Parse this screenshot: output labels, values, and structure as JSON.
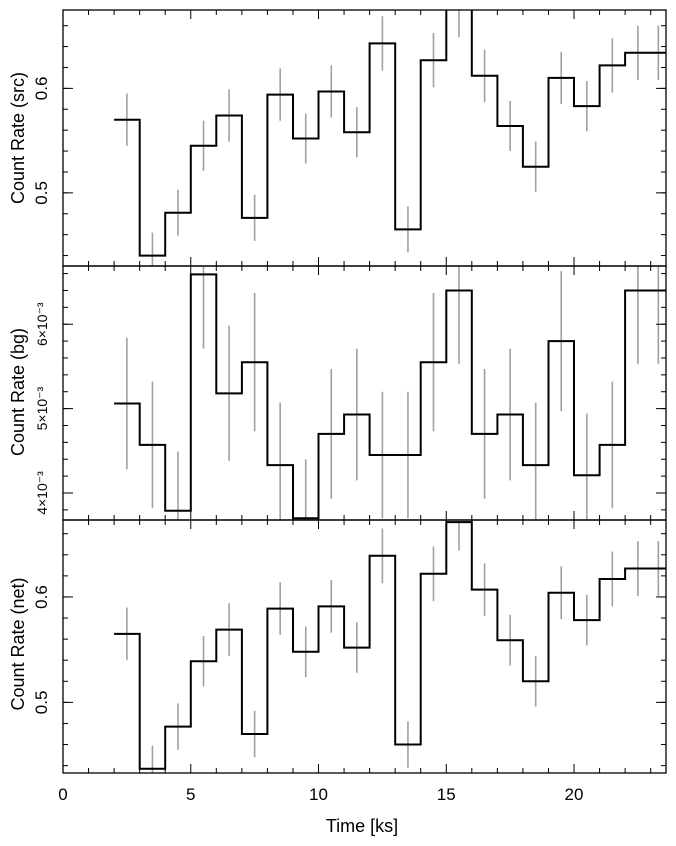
{
  "chart_data": [
    {
      "type": "line",
      "ylabel": "Count Rate (src)",
      "ylim": [
        0.43,
        0.675
      ],
      "yticks": [
        0.5,
        0.6
      ],
      "ytick_labels": [
        "0.5",
        "0.6"
      ],
      "x_edges": [
        2.0,
        3.0,
        4.0,
        5.0,
        6.0,
        7.0,
        8.0,
        9.0,
        10.0,
        11.0,
        12.0,
        13.0,
        14.0,
        15.0,
        16.0,
        17.0,
        18.0,
        19.0,
        20.0,
        21.0,
        22.0,
        23.0,
        23.6
      ],
      "x": [
        2.5,
        3.5,
        4.5,
        5.5,
        6.5,
        7.5,
        8.5,
        9.5,
        10.5,
        11.5,
        12.5,
        13.5,
        14.5,
        15.5,
        16.5,
        17.5,
        18.5,
        19.5,
        20.5,
        21.5,
        22.5,
        23.3
      ],
      "values": [
        0.57,
        0.44,
        0.481,
        0.545,
        0.574,
        0.476,
        0.594,
        0.552,
        0.597,
        0.558,
        0.643,
        0.465,
        0.627,
        0.676,
        0.612,
        0.564,
        0.525,
        0.61,
        0.583,
        0.622,
        0.634,
        0.634
      ],
      "errors": [
        0.025,
        0.022,
        0.022,
        0.024,
        0.025,
        0.022,
        0.025,
        0.024,
        0.025,
        0.024,
        0.026,
        0.022,
        0.026,
        0.027,
        0.025,
        0.024,
        0.024,
        0.025,
        0.024,
        0.026,
        0.026,
        0.026
      ]
    },
    {
      "type": "line",
      "ylabel": "Count Rate (bg)",
      "ylim": [
        0.00368,
        0.00669
      ],
      "yticks": [
        0.004,
        0.005,
        0.006
      ],
      "ytick_labels": [
        "4×10⁻³",
        "5×10⁻³",
        "6×10⁻³"
      ],
      "x_edges": [
        2.0,
        3.0,
        4.0,
        5.0,
        6.0,
        7.0,
        8.0,
        9.0,
        10.0,
        11.0,
        12.0,
        13.0,
        14.0,
        15.0,
        16.0,
        17.0,
        18.0,
        19.0,
        20.0,
        21.0,
        22.0,
        23.0,
        23.6
      ],
      "x": [
        2.5,
        3.5,
        4.5,
        5.5,
        6.5,
        7.5,
        8.5,
        9.5,
        10.5,
        11.5,
        12.5,
        13.5,
        14.5,
        15.5,
        16.5,
        17.5,
        18.5,
        19.5,
        20.5,
        21.5,
        22.5,
        23.3
      ],
      "values": [
        0.00506,
        0.00457,
        0.00379,
        0.00659,
        0.00518,
        0.00555,
        0.00433,
        0.0037,
        0.0047,
        0.00493,
        0.00445,
        0.00445,
        0.00555,
        0.0064,
        0.0047,
        0.00493,
        0.00433,
        0.0058,
        0.00421,
        0.00457,
        0.0064,
        0.0064
      ],
      "errors": [
        0.00078,
        0.00075,
        0.0007,
        0.00088,
        0.0008,
        0.00082,
        0.00074,
        0.0007,
        0.00077,
        0.00078,
        0.00075,
        0.00075,
        0.00082,
        0.00087,
        0.00077,
        0.00078,
        0.00074,
        0.00083,
        0.00073,
        0.00075,
        0.00087,
        0.00087
      ]
    },
    {
      "type": "line",
      "ylabel": "Count Rate (net)",
      "xlabel": "Time [ks]",
      "xlim": [
        0,
        23.6
      ],
      "xticks": [
        0,
        5,
        10,
        15,
        20
      ],
      "xtick_labels": [
        "0",
        "5",
        "10",
        "15",
        "20"
      ],
      "ylim": [
        0.433,
        0.673
      ],
      "yticks": [
        0.5,
        0.6
      ],
      "ytick_labels": [
        "0.5",
        "0.6"
      ],
      "x_edges": [
        2.0,
        3.0,
        4.0,
        5.0,
        6.0,
        7.0,
        8.0,
        9.0,
        10.0,
        11.0,
        12.0,
        13.0,
        14.0,
        15.0,
        16.0,
        17.0,
        18.0,
        19.0,
        20.0,
        21.0,
        22.0,
        23.0,
        23.6
      ],
      "x": [
        2.5,
        3.5,
        4.5,
        5.5,
        6.5,
        7.5,
        8.5,
        9.5,
        10.5,
        11.5,
        12.5,
        13.5,
        14.5,
        15.5,
        16.5,
        17.5,
        18.5,
        19.5,
        20.5,
        21.5,
        22.5,
        23.3
      ],
      "values": [
        0.565,
        0.437,
        0.477,
        0.539,
        0.569,
        0.47,
        0.589,
        0.548,
        0.591,
        0.552,
        0.639,
        0.46,
        0.622,
        0.671,
        0.607,
        0.559,
        0.52,
        0.604,
        0.578,
        0.617,
        0.627,
        0.627
      ],
      "errors": [
        0.025,
        0.022,
        0.022,
        0.024,
        0.025,
        0.022,
        0.025,
        0.024,
        0.025,
        0.024,
        0.026,
        0.022,
        0.026,
        0.027,
        0.025,
        0.024,
        0.024,
        0.025,
        0.024,
        0.026,
        0.026,
        0.026
      ]
    }
  ],
  "style": {
    "step_color": "#000000",
    "error_color": "#a0a0a0",
    "frame_color": "#000000"
  }
}
